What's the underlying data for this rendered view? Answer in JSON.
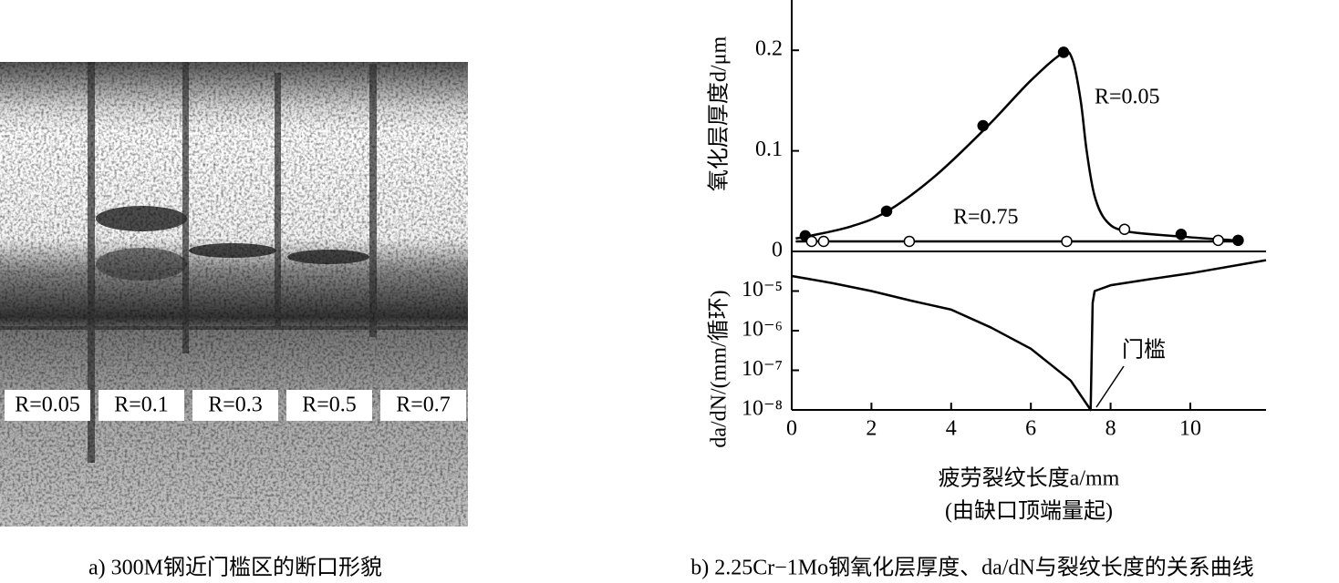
{
  "photo": {
    "labels": [
      "R=0.05",
      "R=0.1",
      "R=0.3",
      "R=0.5",
      "R=0.7"
    ],
    "caption": "a) 300M钢近门槛区的断口形貌"
  },
  "chart_data": [
    {
      "type": "line",
      "ylabel": "氧化层厚度d/μm",
      "xlim": [
        0,
        11.9
      ],
      "ylim": [
        0,
        0.25
      ],
      "yticks": [
        0,
        0.1,
        0.2
      ],
      "series": [
        {
          "name": "R=0.05",
          "color": "#000000",
          "marker": "filled",
          "x": [
            0.34,
            2.38,
            4.8,
            6.82,
            9.77,
            11.2
          ],
          "values": [
            0.0155,
            0.04,
            0.125,
            0.198,
            0.017,
            0.011
          ],
          "curve_x": [
            0.1,
            0.4,
            1.5,
            2.4,
            3.6,
            4.9,
            6.0,
            6.8,
            7.05,
            7.25,
            7.4,
            7.6,
            7.9,
            8.4,
            9.7,
            11.1
          ],
          "curve_values": [
            0.013,
            0.015,
            0.025,
            0.04,
            0.075,
            0.124,
            0.17,
            0.197,
            0.19,
            0.15,
            0.1,
            0.055,
            0.03,
            0.02,
            0.015,
            0.011
          ]
        },
        {
          "name": "R=0.75",
          "color": "#000000",
          "marker": "open",
          "x": [
            0.5,
            0.8,
            2.95,
            6.9,
            8.35,
            10.7
          ],
          "values": [
            0.01,
            0.01,
            0.01,
            0.01,
            0.022,
            0.011
          ],
          "curve_x": [
            0.1,
            11.2
          ],
          "curve_values": [
            0.01,
            0.01
          ]
        }
      ]
    },
    {
      "type": "line",
      "log_y": true,
      "ylabel": "da/dN/(mm/循环)",
      "xlabel": "疲劳裂纹长度a/mm",
      "xlabel2": "(由缺口顶端量起)",
      "xlim": [
        0,
        11.9
      ],
      "xticks": [
        0,
        2,
        4,
        6,
        8,
        10
      ],
      "ylim": [
        1e-08,
        0.0001
      ],
      "yticks": [
        {
          "value": 1e-05,
          "label": "10⁻⁵"
        },
        {
          "value": 1e-06,
          "label": "10⁻⁶"
        },
        {
          "value": 1e-07,
          "label": "10⁻⁷"
        },
        {
          "value": 1e-08,
          "label": "10⁻⁸"
        }
      ],
      "annotation": "门槛",
      "series": [
        {
          "color": "#000000",
          "x": [
            0,
            1,
            2,
            3,
            4,
            5,
            6,
            7,
            7.5,
            7.55,
            7.6,
            8,
            9,
            10,
            11.9
          ],
          "values": [
            2.4e-05,
            1.6e-05,
            1e-05,
            5.7e-06,
            3.4e-06,
            1.2e-06,
            3.5e-07,
            5.5e-08,
            1e-08,
            5e-06,
            1e-05,
            1.4e-05,
            2e-05,
            2.8e-05,
            6e-05
          ]
        }
      ]
    }
  ],
  "caption": "b) 2.25Cr−1Mo钢氧化层厚度、da/dN与裂纹长度的关系曲线"
}
